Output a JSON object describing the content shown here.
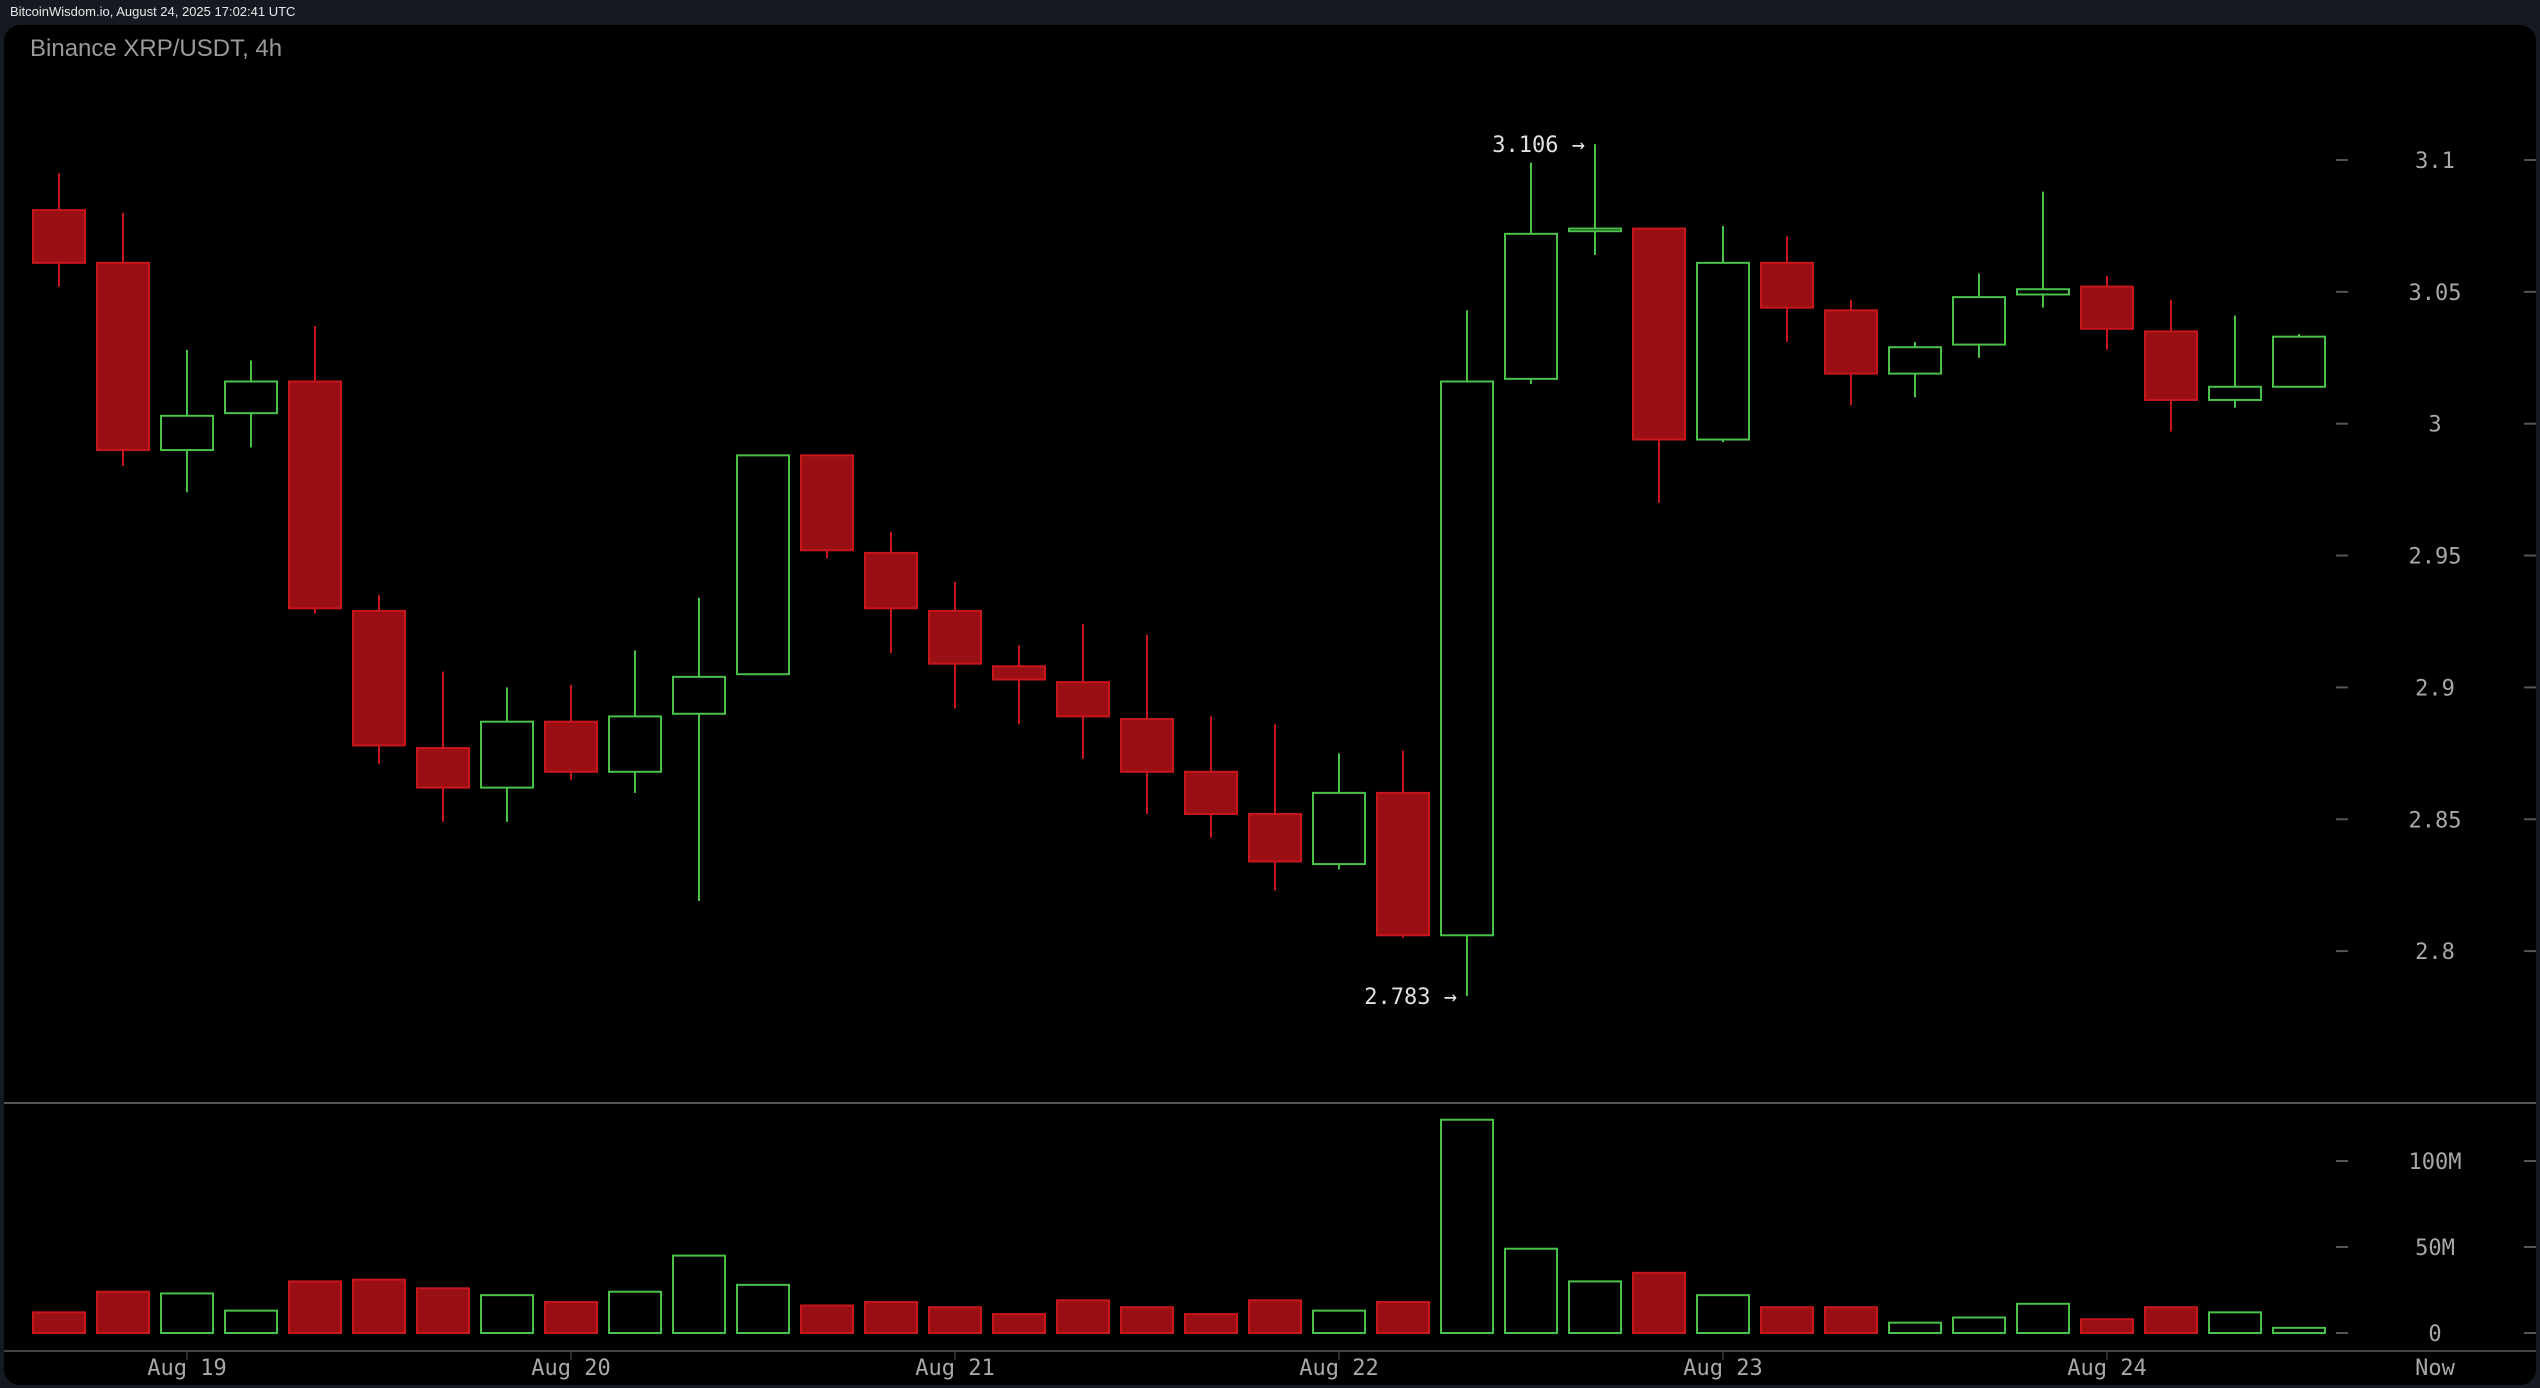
{
  "header": {
    "source_line": "BitcoinWisdom.io, August 24, 2025 17:02:41 UTC"
  },
  "chart": {
    "title": "Binance XRP/USDT, 4h"
  },
  "colors": {
    "up": "#4ac24a",
    "down": "#c8161d",
    "down_fill": "#9a0f14",
    "background": "#000000",
    "page_background": "#151922",
    "axis_text": "#a8a8a8",
    "separator": "#555555"
  },
  "chart_data": {
    "type": "candlestick",
    "title": "Binance XRP/USDT, 4h",
    "price_axis": {
      "ticks": [
        "3.1",
        "3.05",
        "3",
        "2.95",
        "2.9",
        "2.85",
        "2.8"
      ],
      "tick_values": [
        3.1,
        3.05,
        3.0,
        2.95,
        2.9,
        2.85,
        2.8
      ]
    },
    "volume_axis": {
      "ticks": [
        "100M",
        "50M",
        "0"
      ],
      "tick_values": [
        100,
        50,
        0
      ]
    },
    "x_axis": {
      "labels": [
        "Aug 19",
        "Aug 20",
        "Aug 21",
        "Aug 22",
        "Aug 23",
        "Aug 24",
        "Now"
      ],
      "label_candle_index": [
        2,
        8,
        14,
        20,
        26,
        32,
        37
      ]
    },
    "annotations": [
      {
        "text": "3.106 →",
        "price": 3.106,
        "candle_index": 24,
        "type": "high"
      },
      {
        "text": "2.783 →",
        "price": 2.783,
        "candle_index": 22,
        "type": "low"
      }
    ],
    "candles": [
      {
        "o": 3.081,
        "h": 3.095,
        "l": 3.052,
        "c": 3.061,
        "v": 12
      },
      {
        "o": 3.061,
        "h": 3.08,
        "l": 2.984,
        "c": 2.99,
        "v": 24
      },
      {
        "o": 2.99,
        "h": 3.028,
        "l": 2.974,
        "c": 3.003,
        "v": 23
      },
      {
        "o": 3.004,
        "h": 3.024,
        "l": 2.991,
        "c": 3.016,
        "v": 13
      },
      {
        "o": 3.016,
        "h": 3.037,
        "l": 2.928,
        "c": 2.93,
        "v": 30
      },
      {
        "o": 2.929,
        "h": 2.935,
        "l": 2.871,
        "c": 2.878,
        "v": 31
      },
      {
        "o": 2.877,
        "h": 2.906,
        "l": 2.849,
        "c": 2.862,
        "v": 26
      },
      {
        "o": 2.862,
        "h": 2.9,
        "l": 2.849,
        "c": 2.887,
        "v": 22
      },
      {
        "o": 2.887,
        "h": 2.901,
        "l": 2.865,
        "c": 2.868,
        "v": 18
      },
      {
        "o": 2.868,
        "h": 2.914,
        "l": 2.86,
        "c": 2.889,
        "v": 24
      },
      {
        "o": 2.89,
        "h": 2.934,
        "l": 2.819,
        "c": 2.904,
        "v": 45
      },
      {
        "o": 2.905,
        "h": 2.988,
        "l": 2.905,
        "c": 2.988,
        "v": 28
      },
      {
        "o": 2.988,
        "h": 2.988,
        "l": 2.949,
        "c": 2.952,
        "v": 16
      },
      {
        "o": 2.951,
        "h": 2.959,
        "l": 2.913,
        "c": 2.93,
        "v": 18
      },
      {
        "o": 2.929,
        "h": 2.94,
        "l": 2.892,
        "c": 2.909,
        "v": 15
      },
      {
        "o": 2.908,
        "h": 2.916,
        "l": 2.886,
        "c": 2.903,
        "v": 11
      },
      {
        "o": 2.902,
        "h": 2.924,
        "l": 2.873,
        "c": 2.889,
        "v": 19
      },
      {
        "o": 2.888,
        "h": 2.92,
        "l": 2.852,
        "c": 2.868,
        "v": 15
      },
      {
        "o": 2.868,
        "h": 2.889,
        "l": 2.843,
        "c": 2.852,
        "v": 11
      },
      {
        "o": 2.852,
        "h": 2.886,
        "l": 2.823,
        "c": 2.834,
        "v": 19
      },
      {
        "o": 2.833,
        "h": 2.875,
        "l": 2.831,
        "c": 2.86,
        "v": 13
      },
      {
        "o": 2.86,
        "h": 2.876,
        "l": 2.805,
        "c": 2.806,
        "v": 18
      },
      {
        "o": 2.806,
        "h": 3.043,
        "l": 2.783,
        "c": 3.016,
        "v": 124
      },
      {
        "o": 3.017,
        "h": 3.099,
        "l": 3.015,
        "c": 3.072,
        "v": 49
      },
      {
        "o": 3.073,
        "h": 3.106,
        "l": 3.064,
        "c": 3.074,
        "v": 30
      },
      {
        "o": 3.074,
        "h": 3.074,
        "l": 2.97,
        "c": 2.994,
        "v": 35
      },
      {
        "o": 2.994,
        "h": 3.075,
        "l": 2.993,
        "c": 3.061,
        "v": 22
      },
      {
        "o": 3.061,
        "h": 3.071,
        "l": 3.031,
        "c": 3.044,
        "v": 15
      },
      {
        "o": 3.043,
        "h": 3.047,
        "l": 3.007,
        "c": 3.019,
        "v": 15
      },
      {
        "o": 3.019,
        "h": 3.031,
        "l": 3.01,
        "c": 3.029,
        "v": 6
      },
      {
        "o": 3.03,
        "h": 3.057,
        "l": 3.025,
        "c": 3.048,
        "v": 9
      },
      {
        "o": 3.049,
        "h": 3.088,
        "l": 3.044,
        "c": 3.051,
        "v": 17
      },
      {
        "o": 3.052,
        "h": 3.056,
        "l": 3.028,
        "c": 3.036,
        "v": 8
      },
      {
        "o": 3.035,
        "h": 3.047,
        "l": 2.997,
        "c": 3.009,
        "v": 15
      },
      {
        "o": 3.009,
        "h": 3.041,
        "l": 3.006,
        "c": 3.014,
        "v": 12
      },
      {
        "o": 3.014,
        "h": 3.034,
        "l": 3.014,
        "c": 3.033,
        "v": 3
      }
    ],
    "volume_unit": "M",
    "ylim": [
      2.75,
      3.12
    ]
  }
}
